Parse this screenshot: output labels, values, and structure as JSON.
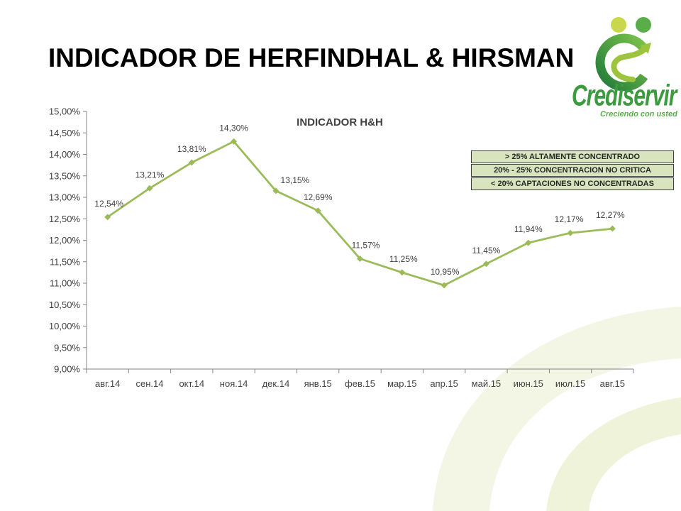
{
  "slide": {
    "title": "INDICADOR DE HERFINDHAL & HIRSMAN"
  },
  "logo": {
    "wordmark": "Crediservir",
    "tagline": "Creciendo con usted",
    "icon": "crediservir-swirl-arrow-icon"
  },
  "colors": {
    "title": "#000000",
    "series": "#9BBB59",
    "axis": "#868686",
    "tick_text": "#404040",
    "scale_box_fill": "#D7E4BD",
    "scale_box_border": "#404040",
    "logo_dark_green": "#2E8540",
    "logo_light_green": "#9CC43C"
  },
  "chart_data": {
    "type": "line",
    "title": "INDICADOR H&H",
    "categories": [
      "авг.14",
      "сен.14",
      "окт.14",
      "ноя.14",
      "дек.14",
      "янв.15",
      "фев.15",
      "мар.15",
      "апр.15",
      "май.15",
      "июн.15",
      "июл.15",
      "авг.15"
    ],
    "series": [
      {
        "values": [
          12.54,
          13.21,
          13.81,
          14.3,
          13.15,
          12.69,
          11.57,
          11.25,
          10.95,
          11.45,
          11.94,
          12.17,
          12.27
        ],
        "data_labels": [
          "12,54%",
          "13,21%",
          "13,81%",
          "14,30%",
          "13,15%",
          "12,69%",
          "11,57%",
          "11,25%",
          "10,95%",
          "11,45%",
          "11,94%",
          "12,17%",
          "12,27%"
        ],
        "color": "#9BBB59",
        "marker": "diamond"
      }
    ],
    "ylim": [
      9,
      15
    ],
    "yticks": [
      9,
      9.5,
      10,
      10.5,
      11,
      11.5,
      12,
      12.5,
      13,
      13.5,
      14,
      14.5,
      15
    ],
    "ytick_labels": [
      "9,00%",
      "9,50%",
      "10,00%",
      "10,50%",
      "11,00%",
      "11,50%",
      "12,00%",
      "12,50%",
      "13,00%",
      "13,50%",
      "14,00%",
      "14,50%",
      "15,00%"
    ],
    "grid": false,
    "annotations": [
      "> 25% ALTAMENTE CONCENTRADO",
      "20% - 25% CONCENTRACION NO CRITICA",
      "< 20% CAPTACIONES NO CONCENTRADAS"
    ]
  }
}
